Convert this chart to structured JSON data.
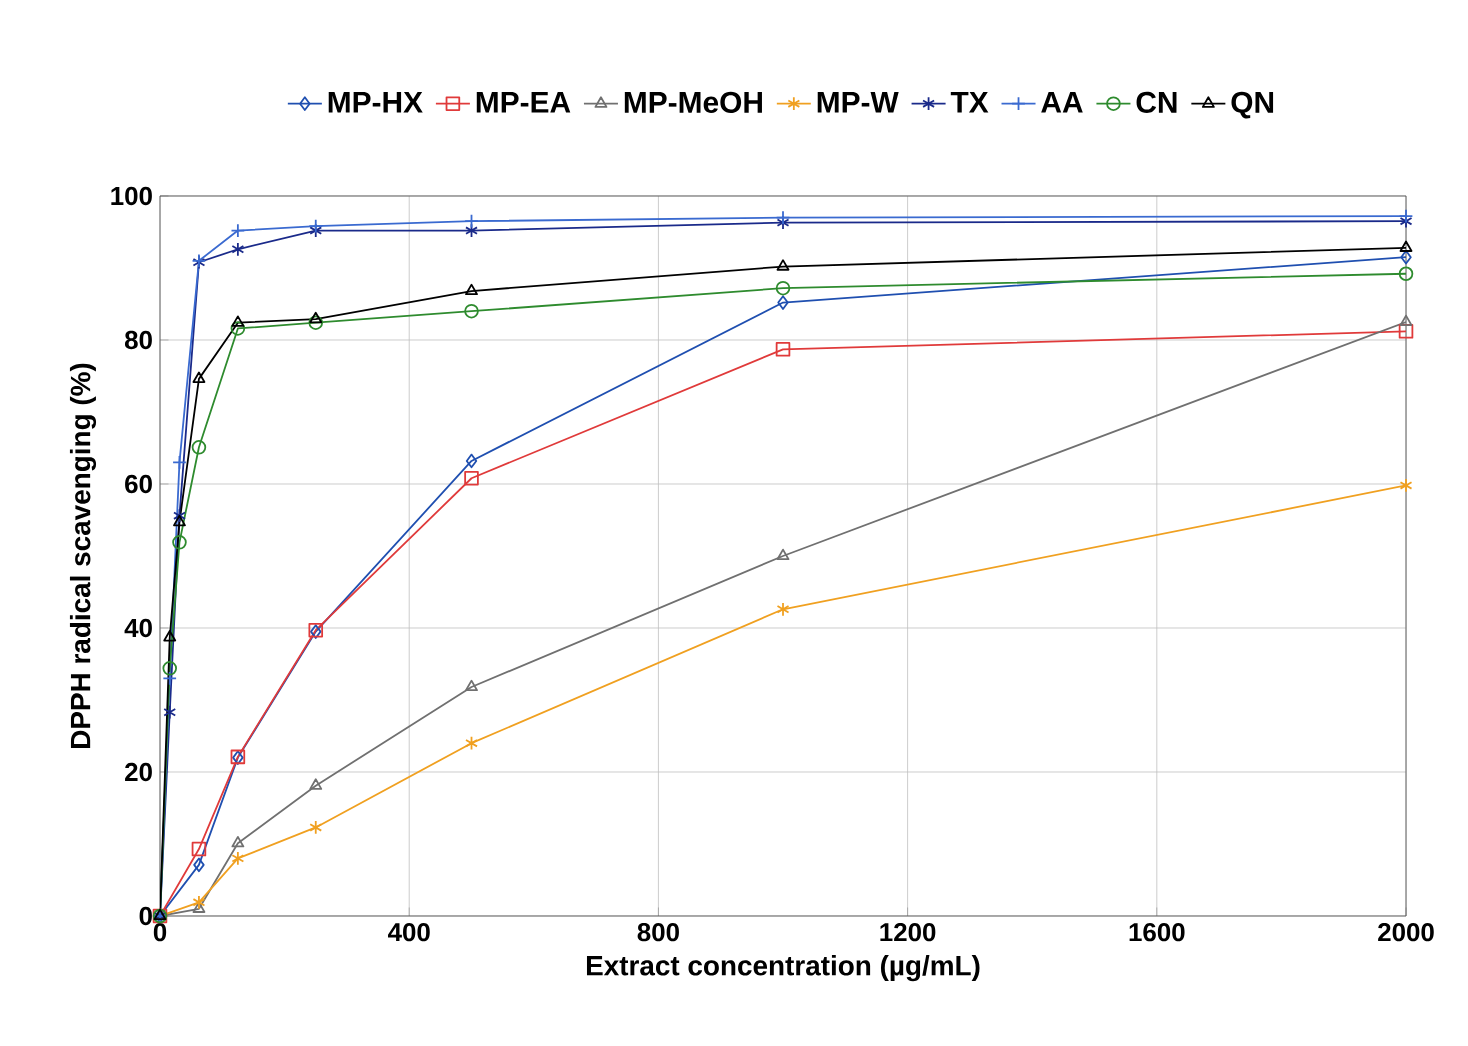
{
  "chart_data": {
    "type": "line",
    "xlabel": "Extract concentration (µg/mL)",
    "ylabel": "DPPH radical scavenging (%)",
    "xlim": [
      0,
      2000
    ],
    "xticks": [
      0,
      400,
      800,
      1200,
      1600,
      2000
    ],
    "ylim": [
      0,
      100
    ],
    "yticks": [
      0,
      20,
      40,
      60,
      80,
      100
    ],
    "grid": true,
    "legend": "top",
    "line_style": "solid",
    "series": [
      {
        "name": "MP-HX",
        "color": "#1f4fb0",
        "marker": "diamond",
        "x": [
          0,
          62.5,
          125,
          250,
          500,
          1000,
          2000
        ],
        "values": [
          0,
          7.1,
          22,
          39.5,
          63.2,
          85.2,
          91.5
        ]
      },
      {
        "name": "MP-EA",
        "color": "#e03a3a",
        "marker": "square",
        "x": [
          0,
          62.5,
          125,
          250,
          500,
          1000,
          2000
        ],
        "values": [
          0,
          9.3,
          22.1,
          39.7,
          60.8,
          78.7,
          81.2
        ]
      },
      {
        "name": "MP-MeOH",
        "color": "#707070",
        "marker": "triangle",
        "x": [
          0,
          62.5,
          125,
          250,
          500,
          1000,
          2000
        ],
        "values": [
          0,
          1,
          10.1,
          18.1,
          31.8,
          50,
          82.5
        ]
      },
      {
        "name": "MP-W",
        "color": "#f0a020",
        "marker": "cross",
        "x": [
          0,
          62.5,
          125,
          250,
          500,
          1000,
          2000
        ],
        "values": [
          0,
          1.9,
          8,
          12.3,
          24,
          42.6,
          59.8
        ]
      },
      {
        "name": "TX",
        "color": "#1a2a8a",
        "marker": "cross",
        "x": [
          0,
          15.625,
          31.25,
          62.5,
          125,
          250,
          500,
          1000,
          2000
        ],
        "values": [
          0,
          28.3,
          55.6,
          90.8,
          92.6,
          95.2,
          95.2,
          96.3,
          96.5
        ]
      },
      {
        "name": "AA",
        "color": "#3a6ad0",
        "marker": "plus",
        "x": [
          0,
          15.625,
          31.25,
          62.5,
          125,
          250,
          500,
          1000,
          2000
        ],
        "values": [
          0,
          33,
          63,
          91,
          95.2,
          95.8,
          96.5,
          97,
          97.2
        ]
      },
      {
        "name": "CN",
        "color": "#2e8b2e",
        "marker": "circle",
        "x": [
          0,
          15.625,
          31.25,
          62.5,
          125,
          250,
          500,
          1000,
          2000
        ],
        "values": [
          0,
          34.4,
          51.9,
          65.1,
          81.6,
          82.4,
          84,
          87.2,
          89.2
        ]
      },
      {
        "name": "QN",
        "color": "#000000",
        "marker": "triangle",
        "x": [
          0,
          15.625,
          31.25,
          62.5,
          125,
          250,
          500,
          1000,
          2000
        ],
        "values": [
          0,
          38.7,
          54.7,
          74.6,
          82.4,
          82.9,
          86.8,
          90.2,
          92.8
        ]
      }
    ]
  }
}
